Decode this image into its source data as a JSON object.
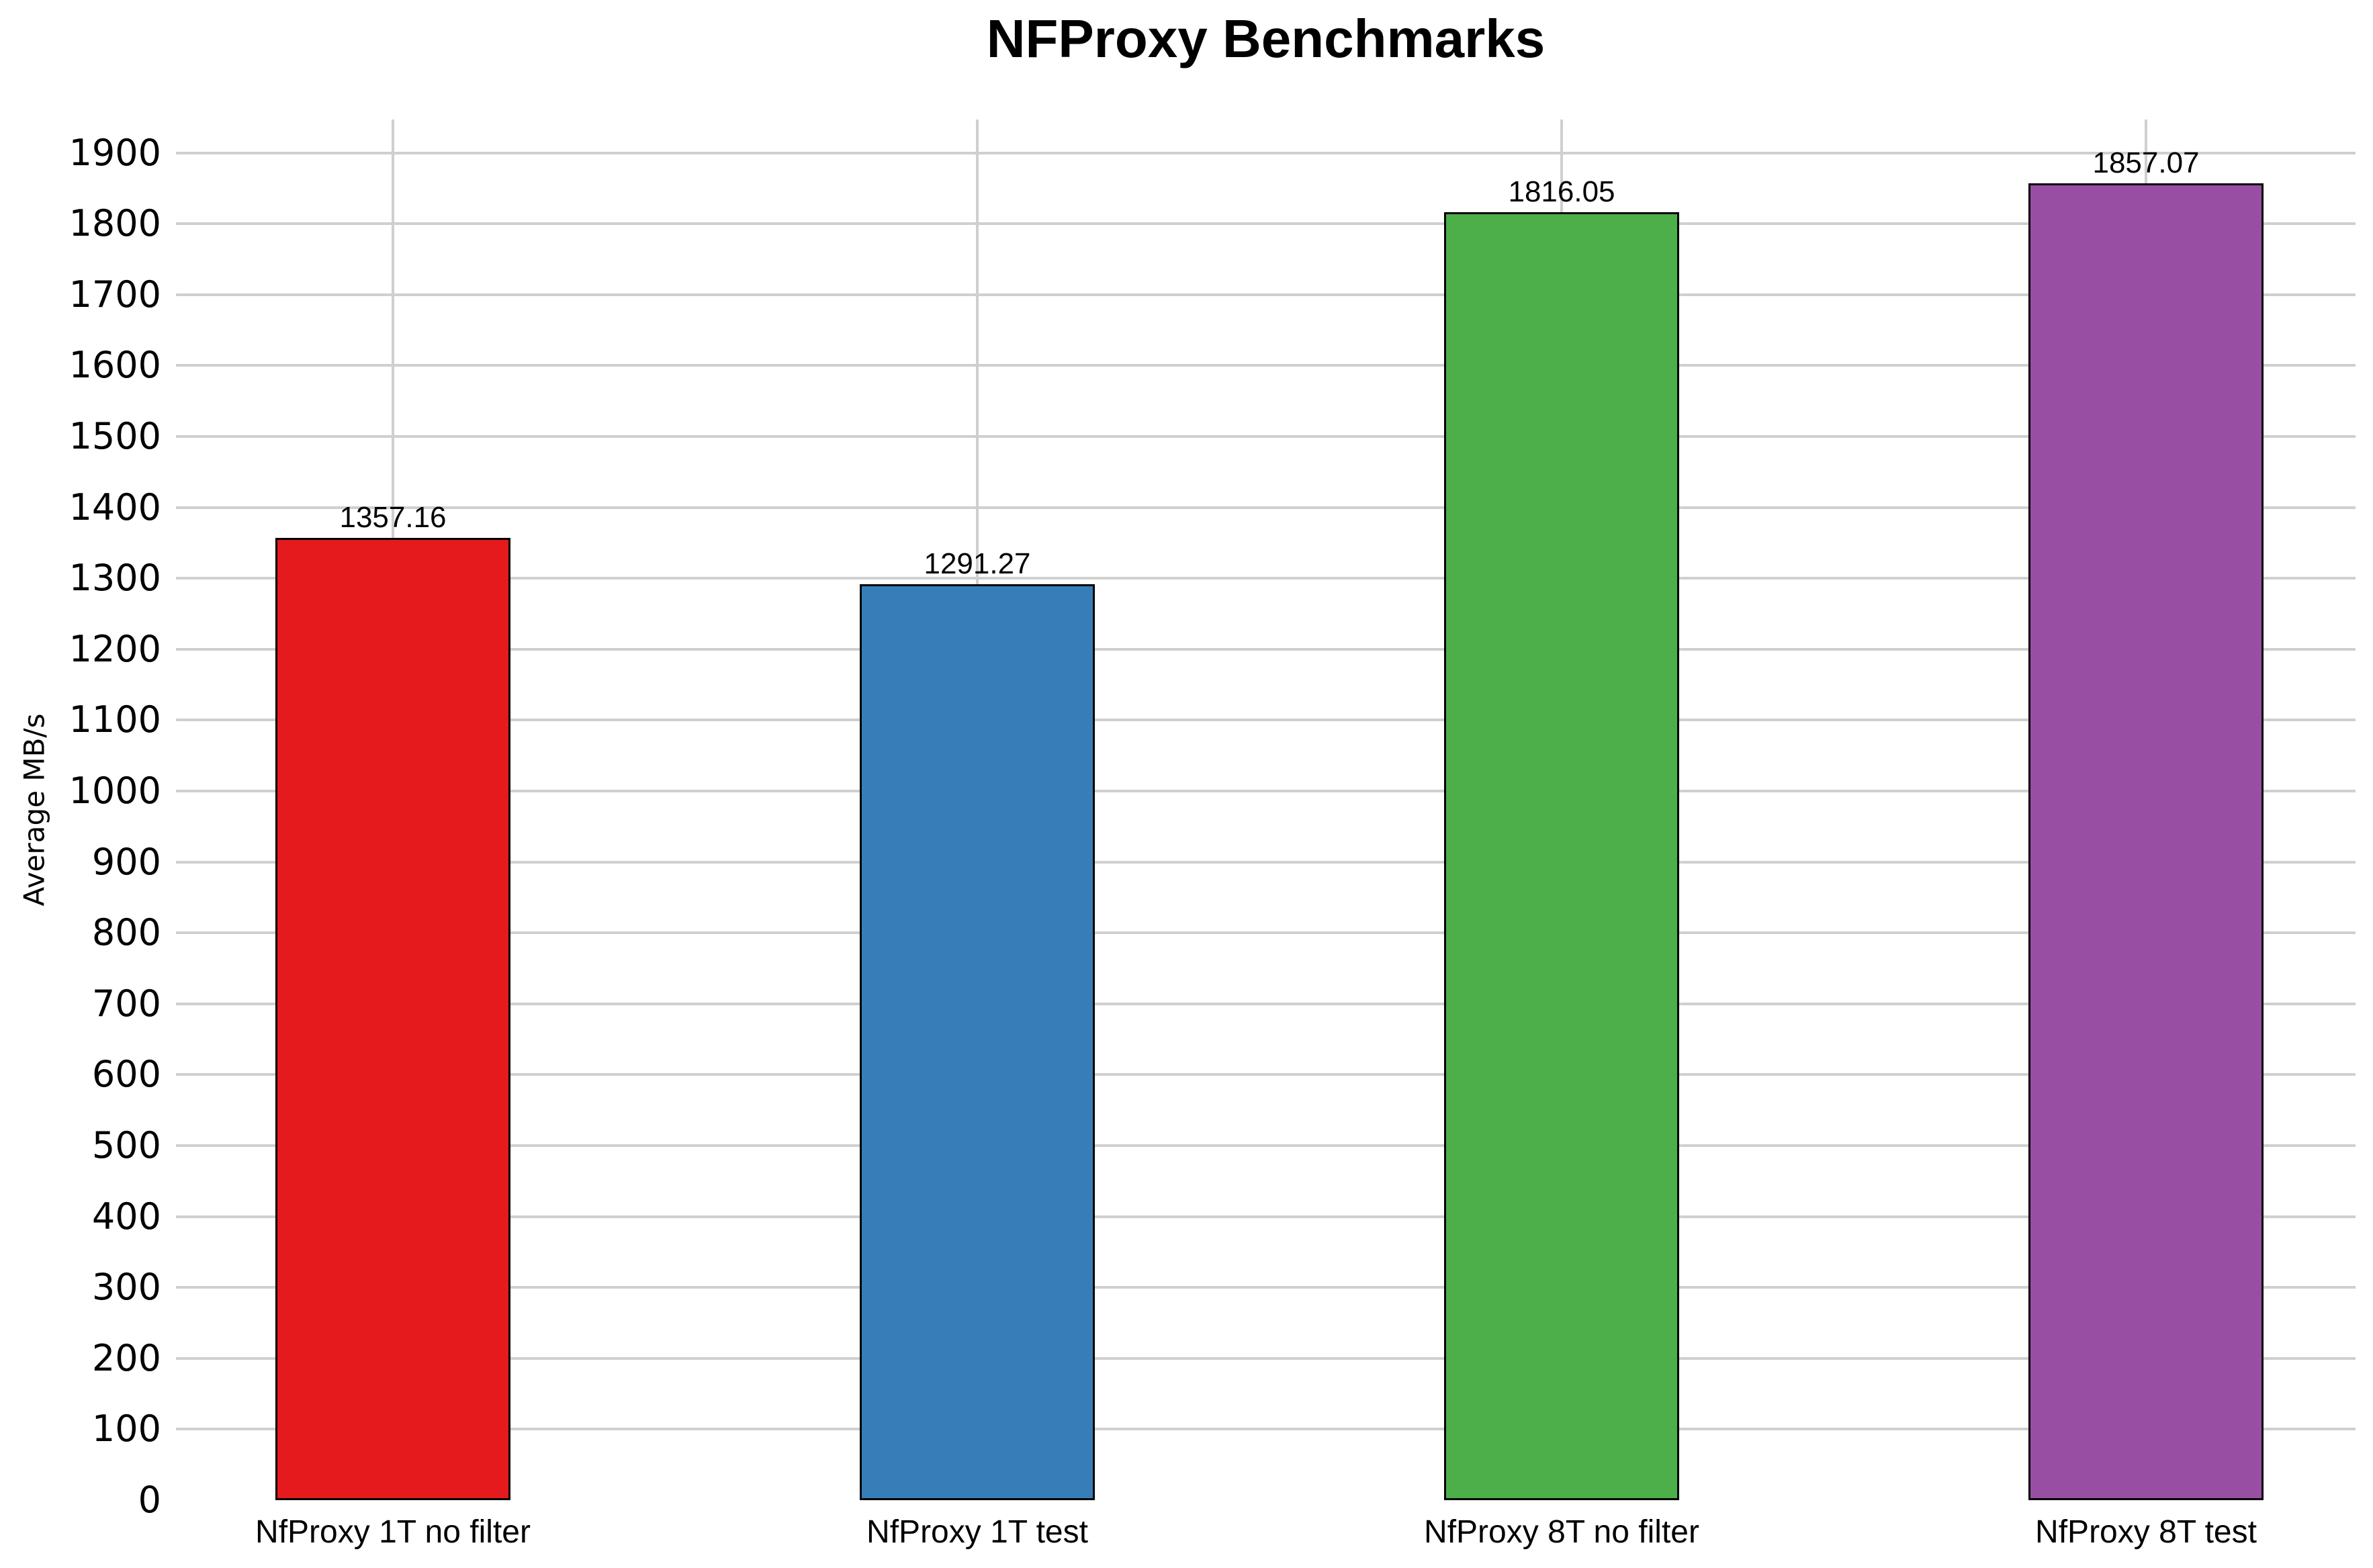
{
  "chart_data": {
    "type": "bar",
    "title": "NFProxy Benchmarks",
    "xlabel": "",
    "ylabel": "Average MB/s",
    "categories": [
      "NfProxy 1T no filter",
      "NfProxy 1T test",
      "NfProxy 8T no filter",
      "NfProxy 8T test"
    ],
    "values": [
      1357.16,
      1291.27,
      1816.05,
      1857.07
    ],
    "bar_value_labels": [
      "1357.16",
      "1291.27",
      "1816.05",
      "1857.07"
    ],
    "bar_colors": [
      "#e41a1c",
      "#377eb8",
      "#4daf4a",
      "#984ea3"
    ],
    "bar_edge_color": "#000000",
    "grid": "on",
    "grid_color": "#cfcfcf",
    "background_color": "#ffffff",
    "legend": "none",
    "y_ticks": [
      0,
      100,
      200,
      300,
      400,
      500,
      600,
      700,
      800,
      900,
      1000,
      1100,
      1200,
      1300,
      1400,
      1500,
      1600,
      1700,
      1800,
      1900
    ],
    "ylim": [
      0,
      1947
    ]
  }
}
